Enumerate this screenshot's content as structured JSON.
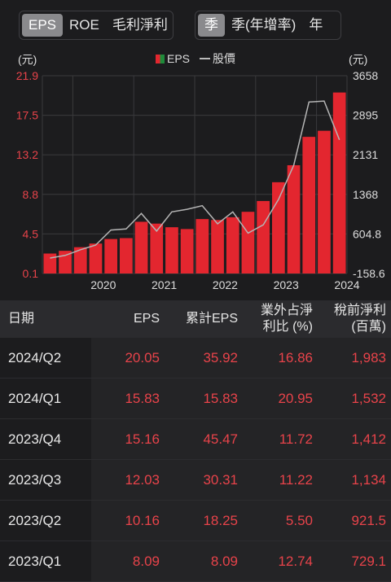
{
  "tabs_left": [
    {
      "label": "EPS",
      "active": true
    },
    {
      "label": "ROE",
      "active": false
    },
    {
      "label": "毛利淨利",
      "active": false
    }
  ],
  "tabs_right": [
    {
      "label": "季",
      "active": true
    },
    {
      "label": "季(年增率)",
      "active": false
    },
    {
      "label": "年",
      "active": false
    }
  ],
  "legend": {
    "eps": "EPS",
    "price": "股價"
  },
  "unit_left": "(元)",
  "unit_right": "(元)",
  "colors": {
    "bar": "#e3262f",
    "price_line": "#b5b5b5",
    "left_axis": "#e8434a",
    "grid": "#3a3a3c"
  },
  "chart_data": {
    "type": "bar",
    "x_tick_labels": [
      "2020",
      "2021",
      "2022",
      "2023",
      "2024"
    ],
    "left_axis": {
      "ticks": [
        "21.9",
        "17.5",
        "13.2",
        "8.8",
        "4.5",
        "0.1"
      ],
      "range": [
        0.1,
        21.9
      ]
    },
    "right_axis": {
      "ticks": [
        "3658",
        "2895",
        "2131",
        "1368",
        "604.8",
        "-158.6"
      ],
      "range": [
        -158.6,
        3658
      ]
    },
    "categories": [
      "2019/Q3",
      "2019/Q4",
      "2020/Q1",
      "2020/Q2",
      "2020/Q3",
      "2020/Q4",
      "2021/Q1",
      "2021/Q2",
      "2021/Q3",
      "2021/Q4",
      "2022/Q1",
      "2022/Q2",
      "2022/Q3",
      "2022/Q4",
      "2023/Q1",
      "2023/Q2",
      "2023/Q3",
      "2023/Q4",
      "2024/Q1",
      "2024/Q2"
    ],
    "series": [
      {
        "name": "EPS",
        "type": "bar",
        "axis": "left",
        "values": [
          2.3,
          2.6,
          3.0,
          3.4,
          3.9,
          4.0,
          5.8,
          5.6,
          5.2,
          5.0,
          6.1,
          6.0,
          6.3,
          6.9,
          8.09,
          10.16,
          12.03,
          15.16,
          15.83,
          20.05
        ]
      },
      {
        "name": "股價",
        "type": "line",
        "axis": "right",
        "values": [
          140,
          190,
          300,
          390,
          680,
          700,
          1000,
          660,
          1030,
          1080,
          1150,
          800,
          1030,
          620,
          780,
          1270,
          1930,
          3150,
          3170,
          2420
        ]
      }
    ]
  },
  "table": {
    "headers": [
      "日期",
      "EPS",
      "累計EPS",
      "業外占淨\n利比 (%)",
      "稅前淨利\n(百萬)"
    ],
    "rows": [
      [
        "2024/Q2",
        "20.05",
        "35.92",
        "16.86",
        "1,983"
      ],
      [
        "2024/Q1",
        "15.83",
        "15.83",
        "20.95",
        "1,532"
      ],
      [
        "2023/Q4",
        "15.16",
        "45.47",
        "11.72",
        "1,412"
      ],
      [
        "2023/Q3",
        "12.03",
        "30.31",
        "11.22",
        "1,134"
      ],
      [
        "2023/Q2",
        "10.16",
        "18.25",
        "5.50",
        "921.5"
      ],
      [
        "2023/Q1",
        "8.09",
        "8.09",
        "12.74",
        "729.1"
      ]
    ]
  }
}
